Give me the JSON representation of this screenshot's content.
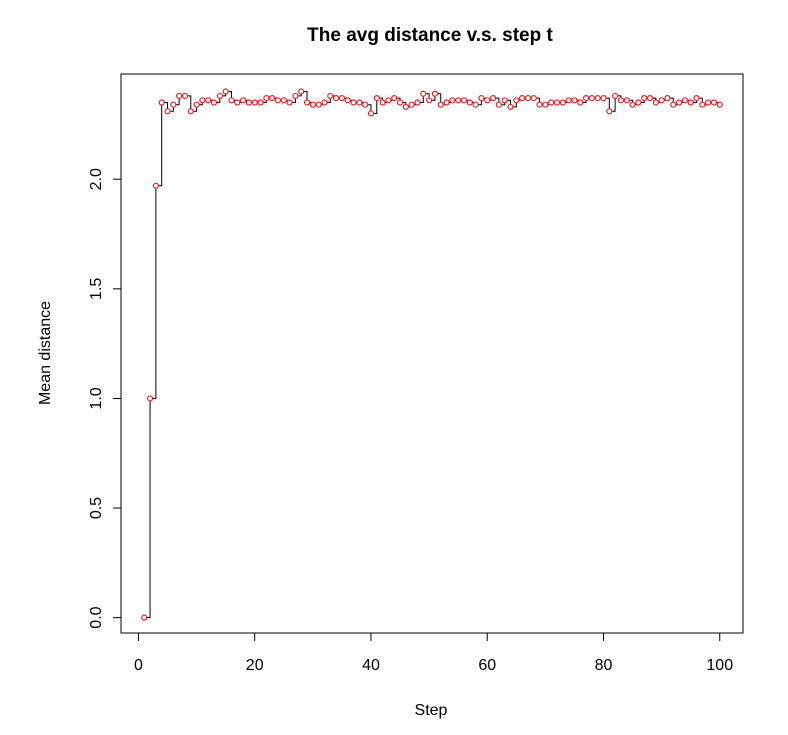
{
  "chart_data": {
    "type": "line",
    "title": "The avg distance v.s. step t",
    "xlabel": "Step",
    "ylabel": "Mean distance",
    "xlim": [
      -3,
      104
    ],
    "ylim": [
      -0.07,
      2.48
    ],
    "x_ticks": [
      0,
      20,
      40,
      60,
      80,
      100
    ],
    "x_tick_labels": [
      "0",
      "20",
      "40",
      "60",
      "80",
      "100"
    ],
    "y_ticks": [
      0.0,
      0.5,
      1.0,
      1.5,
      2.0
    ],
    "y_tick_labels": [
      "0.0",
      "0.5",
      "1.0",
      "1.5",
      "2.0"
    ],
    "grid": false,
    "line_style": "step",
    "line_color": "#000000",
    "point_color": "#e0252a",
    "series": [
      {
        "x": [
          1,
          2,
          3,
          4,
          5,
          6,
          7,
          8,
          9,
          10,
          11,
          12,
          13,
          14,
          15,
          16,
          17,
          18,
          19,
          20,
          21,
          22,
          23,
          24,
          25,
          26,
          27,
          28,
          29,
          30,
          31,
          32,
          33,
          34,
          35,
          36,
          37,
          38,
          39,
          40,
          41,
          42,
          43,
          44,
          45,
          46,
          47,
          48,
          49,
          50,
          51,
          52,
          53,
          54,
          55,
          56,
          57,
          58,
          59,
          60,
          61,
          62,
          63,
          64,
          65,
          66,
          67,
          68,
          69,
          70,
          71,
          72,
          73,
          74,
          75,
          76,
          77,
          78,
          79,
          80,
          81,
          82,
          83,
          84,
          85,
          86,
          87,
          88,
          89,
          90,
          91,
          92,
          93,
          94,
          95,
          96,
          97,
          98,
          99,
          100
        ],
        "values": [
          0.0,
          1.0,
          1.97,
          2.35,
          2.31,
          2.34,
          2.38,
          2.38,
          2.31,
          2.34,
          2.36,
          2.36,
          2.35,
          2.38,
          2.4,
          2.36,
          2.35,
          2.36,
          2.35,
          2.35,
          2.35,
          2.37,
          2.37,
          2.36,
          2.36,
          2.35,
          2.38,
          2.4,
          2.35,
          2.34,
          2.34,
          2.35,
          2.38,
          2.37,
          2.37,
          2.36,
          2.35,
          2.35,
          2.34,
          2.3,
          2.37,
          2.35,
          2.36,
          2.37,
          2.35,
          2.33,
          2.34,
          2.35,
          2.39,
          2.36,
          2.39,
          2.34,
          2.35,
          2.36,
          2.36,
          2.36,
          2.35,
          2.34,
          2.37,
          2.36,
          2.37,
          2.34,
          2.36,
          2.33,
          2.36,
          2.37,
          2.37,
          2.37,
          2.34,
          2.34,
          2.35,
          2.35,
          2.35,
          2.36,
          2.36,
          2.35,
          2.37,
          2.37,
          2.37,
          2.37,
          2.31,
          2.38,
          2.36,
          2.36,
          2.34,
          2.35,
          2.37,
          2.37,
          2.35,
          2.36,
          2.37,
          2.34,
          2.35,
          2.36,
          2.35,
          2.37,
          2.34,
          2.35,
          2.35,
          2.34
        ]
      }
    ]
  }
}
